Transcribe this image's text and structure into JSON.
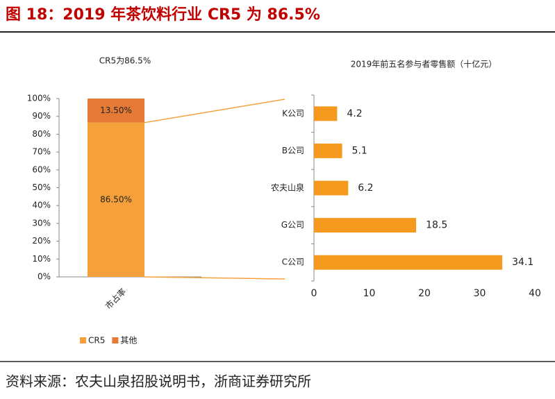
{
  "header": {
    "title": "图 18：2019 年茶饮料行业 CR5 为 86.5%"
  },
  "footer": {
    "source": "资料来源：农夫山泉招股说明书，浙商证券研究所"
  },
  "chart_data": [
    {
      "type": "bar",
      "title": "CR5为86.5%",
      "stacked": true,
      "categories": [
        "市占率"
      ],
      "series": [
        {
          "name": "CR5",
          "color": "#f5a03a",
          "values": [
            86.5
          ],
          "value_labels": [
            "86.50%"
          ]
        },
        {
          "name": "其他",
          "color": "#e57a36",
          "values": [
            13.5
          ],
          "value_labels": [
            "13.50%"
          ]
        }
      ],
      "ylim": [
        0,
        100
      ],
      "yticks": [
        {
          "value": 0,
          "label": "0%"
        },
        {
          "value": 10,
          "label": "10%"
        },
        {
          "value": 20,
          "label": "20%"
        },
        {
          "value": 30,
          "label": "30%"
        },
        {
          "value": 40,
          "label": "40%"
        },
        {
          "value": 50,
          "label": "50%"
        },
        {
          "value": 60,
          "label": "60%"
        },
        {
          "value": 70,
          "label": "70%"
        },
        {
          "value": 80,
          "label": "80%"
        },
        {
          "value": 90,
          "label": "90%"
        },
        {
          "value": 100,
          "label": "100%"
        }
      ],
      "legend": "bottom"
    },
    {
      "type": "bar",
      "orientation": "horizontal",
      "title": "2019年前五名参与者零售额（十亿元）",
      "categories": [
        "K公司",
        "B公司",
        "农夫山泉",
        "G公司",
        "C公司"
      ],
      "values": [
        4.2,
        5.1,
        6.2,
        18.5,
        34.1
      ],
      "color": "#f59a1f",
      "xlim": [
        0,
        40
      ],
      "xticks": [
        0,
        10,
        20,
        30,
        40
      ]
    }
  ]
}
